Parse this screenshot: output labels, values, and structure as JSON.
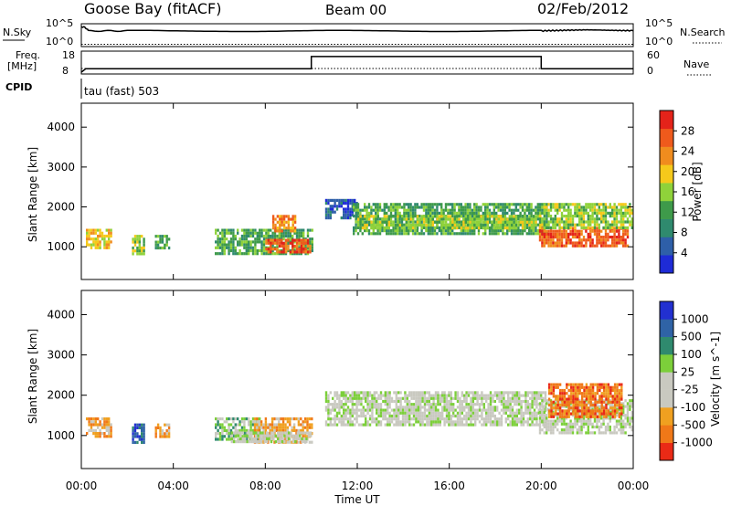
{
  "header": {
    "site": "Goose Bay (fitACF)",
    "beam": "Beam 00",
    "date": "02/Feb/2012"
  },
  "noise_panel": {
    "left_label": "N.Sky",
    "right_label": "N.Search",
    "left_ticks": [
      "10^5",
      "10^0"
    ],
    "right_ticks": [
      "10^5",
      "10^0"
    ]
  },
  "freq_panel": {
    "left_label_1": "Freq.",
    "left_label_2": "[MHz]",
    "right_label": "Nave",
    "left_ticks": [
      "18",
      "8"
    ],
    "right_ticks": [
      "60",
      "0"
    ]
  },
  "cpid": {
    "label": "CPID",
    "text": "tau (fast) 503"
  },
  "colors": {
    "power_scale": [
      "#1e2bd6",
      "#2e5fa8",
      "#2f8a6e",
      "#3e9a4a",
      "#8fd23a",
      "#f5c91b",
      "#f08c1e",
      "#ef5a1c",
      "#e4231a"
    ],
    "velocity_scale": [
      "#2230d0",
      "#2f63a6",
      "#2f8a6e",
      "#7ccf3a",
      "#c9c9c0",
      "#c9c9c0",
      "#f0a020",
      "#f07818",
      "#ea2a16"
    ],
    "ground_scatter": "#bdbdb3"
  },
  "chart_data": [
    {
      "type": "line",
      "title": "N.Sky / N.Search",
      "x_range_hours": [
        0,
        24
      ],
      "y_scale": "log",
      "series": [
        {
          "name": "N.Sky",
          "style": "solid",
          "x": [
            0,
            0.3,
            2,
            4,
            6,
            8,
            10,
            12,
            14,
            16,
            18,
            20,
            21,
            22,
            23,
            24
          ],
          "y": [
            100000,
            6000,
            6500,
            5800,
            6200,
            5600,
            6000,
            5900,
            6100,
            5800,
            6000,
            6200,
            9000,
            12000,
            9000,
            7000
          ]
        },
        {
          "name": "N.Search",
          "style": "dotted",
          "x": [
            0,
            24
          ],
          "y": [
            1,
            1
          ]
        }
      ]
    },
    {
      "type": "line",
      "title": "Freq. [MHz] / Nave",
      "x_range_hours": [
        0,
        24
      ],
      "series": [
        {
          "name": "Freq. [MHz]",
          "style": "solid",
          "x": [
            0,
            0.2,
            10,
            10,
            20,
            20,
            24
          ],
          "y": [
            8,
            10,
            10,
            17,
            17,
            10,
            10
          ]
        },
        {
          "name": "Nave",
          "style": "dotted",
          "x": [
            0,
            24
          ],
          "y": [
            8,
            8
          ]
        }
      ]
    },
    {
      "type": "heatmap",
      "title": "Power [dB]",
      "xlabel": "",
      "ylabel": "Slant Range [km]",
      "x_range_hours": [
        0,
        24
      ],
      "ylim": [
        180,
        4600
      ],
      "yticks": [
        "1000",
        "2000",
        "3000",
        "4000"
      ],
      "colorbar_label": "Power [dB]",
      "colorbar_ticks": [
        "4",
        "8",
        "12",
        "16",
        "20",
        "24",
        "28"
      ],
      "regions": [
        {
          "t": [
            0.2,
            1.3
          ],
          "r": [
            950,
            1450
          ],
          "level": 5
        },
        {
          "t": [
            2.2,
            2.7
          ],
          "r": [
            800,
            1300
          ],
          "level": 4
        },
        {
          "t": [
            3.2,
            3.8
          ],
          "r": [
            950,
            1300
          ],
          "level": 3
        },
        {
          "t": [
            5.8,
            10.0
          ],
          "r": [
            800,
            1450
          ],
          "level": 3
        },
        {
          "t": [
            8.0,
            10.0
          ],
          "r": [
            850,
            1200
          ],
          "level": 7
        },
        {
          "t": [
            8.3,
            9.3
          ],
          "r": [
            1400,
            1800
          ],
          "level": 6
        },
        {
          "t": [
            10.6,
            12.0
          ],
          "r": [
            1700,
            2200
          ],
          "level": 1
        },
        {
          "t": [
            11.8,
            20.2
          ],
          "r": [
            1350,
            2100
          ],
          "level": 3
        },
        {
          "t": [
            12.0,
            20.0
          ],
          "r": [
            1500,
            1800
          ],
          "level": 4
        },
        {
          "t": [
            19.9,
            23.8
          ],
          "r": [
            1050,
            1500
          ],
          "level": 7
        },
        {
          "t": [
            19.9,
            24.0
          ],
          "r": [
            1500,
            2100
          ],
          "level": 4
        }
      ]
    },
    {
      "type": "heatmap",
      "title": "Velocity [m s-1]",
      "xlabel": "Time UT",
      "ylabel": "Slant Range [km]",
      "x_range_hours": [
        0,
        24
      ],
      "ylim": [
        180,
        4600
      ],
      "yticks": [
        "1000",
        "2000",
        "3000",
        "4000"
      ],
      "xticks": [
        "00:00",
        "04:00",
        "08:00",
        "12:00",
        "16:00",
        "20:00",
        "00:00"
      ],
      "colorbar_label": "Velocity [m s^-1]",
      "colorbar_ticks": [
        "1000",
        "500",
        "100",
        "25",
        "-25",
        "-100",
        "-500",
        "-1000"
      ],
      "regions": [
        {
          "t": [
            0.2,
            1.3
          ],
          "r": [
            950,
            1450
          ],
          "level": 6
        },
        {
          "t": [
            2.2,
            2.7
          ],
          "r": [
            800,
            1300
          ],
          "level": 1
        },
        {
          "t": [
            3.2,
            3.8
          ],
          "r": [
            950,
            1300
          ],
          "level": 6
        },
        {
          "t": [
            5.8,
            7.8
          ],
          "r": [
            900,
            1450
          ],
          "level": 3
        },
        {
          "t": [
            7.5,
            10.0
          ],
          "r": [
            800,
            1450
          ],
          "level": 6
        },
        {
          "t": [
            6.5,
            10.0
          ],
          "r": [
            850,
            1100
          ],
          "level": 4
        },
        {
          "t": [
            10.6,
            20.2
          ],
          "r": [
            1300,
            2100
          ],
          "level": 4
        },
        {
          "t": [
            19.9,
            24.0
          ],
          "r": [
            1050,
            1900
          ],
          "level": 4
        },
        {
          "t": [
            20.3,
            23.5
          ],
          "r": [
            1500,
            2300
          ],
          "level": 7
        }
      ]
    }
  ]
}
